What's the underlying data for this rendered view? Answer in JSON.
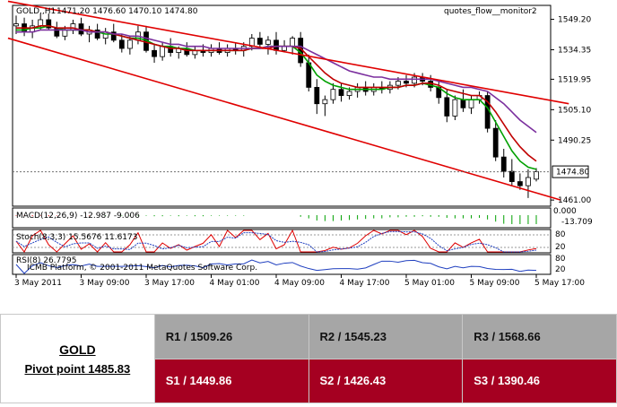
{
  "chart_data": {
    "type": "candlestick",
    "symbol_label": "GOLD,,H1",
    "ohlc_header": "1471.20 1476.60 1470.10 1474.80",
    "indicator_label": "quotes_flow__monitor2",
    "ylim": [
      1458,
      1556
    ],
    "y_ticks": [
      "1549.20",
      "1534.35",
      "1519.95",
      "1505.10",
      "1490.25",
      "1461.00"
    ],
    "y_tick_values": [
      1549.2,
      1534.35,
      1519.95,
      1505.1,
      1490.25,
      1461.0
    ],
    "last_price": "1474.80",
    "last_price_value": 1474.8,
    "x_tick_labels": [
      "3 May 2011",
      "3 May 09:00",
      "3 May 17:00",
      "4 May 01:00",
      "4 May 09:00",
      "4 May 17:00",
      "5 May 01:00",
      "5 May 09:00",
      "5 May 17:00"
    ],
    "x_tick_index": [
      0,
      8,
      16,
      24,
      32,
      40,
      48,
      56,
      64
    ],
    "candles": [
      [
        1546,
        1551,
        1542,
        1547
      ],
      [
        1547,
        1550,
        1541,
        1543
      ],
      [
        1543,
        1549,
        1540,
        1546
      ],
      [
        1546,
        1552,
        1544,
        1549
      ],
      [
        1549,
        1552,
        1544,
        1545
      ],
      [
        1545,
        1548,
        1540,
        1541
      ],
      [
        1541,
        1546,
        1539,
        1544
      ],
      [
        1544,
        1549,
        1542,
        1547
      ],
      [
        1547,
        1550,
        1541,
        1542
      ],
      [
        1542,
        1546,
        1538,
        1544
      ],
      [
        1544,
        1547,
        1539,
        1540
      ],
      [
        1540,
        1545,
        1537,
        1543
      ],
      [
        1543,
        1547,
        1538,
        1539
      ],
      [
        1539,
        1542,
        1533,
        1535
      ],
      [
        1535,
        1541,
        1532,
        1539
      ],
      [
        1539,
        1546,
        1537,
        1543
      ],
      [
        1543,
        1546,
        1533,
        1534
      ],
      [
        1534,
        1537,
        1528,
        1531
      ],
      [
        1531,
        1538,
        1529,
        1536
      ],
      [
        1536,
        1540,
        1531,
        1533
      ],
      [
        1533,
        1536,
        1530,
        1535
      ],
      [
        1535,
        1538,
        1531,
        1532
      ],
      [
        1532,
        1536,
        1530,
        1534
      ],
      [
        1534,
        1537,
        1531,
        1533
      ],
      [
        1533,
        1537,
        1531,
        1535
      ],
      [
        1535,
        1538,
        1532,
        1533
      ],
      [
        1533,
        1537,
        1531,
        1535
      ],
      [
        1535,
        1538,
        1532,
        1534
      ],
      [
        1534,
        1538,
        1531,
        1536
      ],
      [
        1536,
        1542,
        1534,
        1540
      ],
      [
        1540,
        1543,
        1535,
        1537
      ],
      [
        1537,
        1541,
        1532,
        1539
      ],
      [
        1539,
        1543,
        1532,
        1534
      ],
      [
        1534,
        1539,
        1533,
        1536
      ],
      [
        1536,
        1541,
        1532,
        1540
      ],
      [
        1540,
        1543,
        1526,
        1528
      ],
      [
        1528,
        1532,
        1514,
        1516
      ],
      [
        1516,
        1520,
        1503,
        1508
      ],
      [
        1508,
        1512,
        1502,
        1510
      ],
      [
        1510,
        1518,
        1508,
        1515
      ],
      [
        1515,
        1518,
        1509,
        1512
      ],
      [
        1512,
        1516,
        1510,
        1514
      ],
      [
        1514,
        1518,
        1511,
        1516
      ],
      [
        1516,
        1519,
        1512,
        1514
      ],
      [
        1514,
        1518,
        1512,
        1516
      ],
      [
        1516,
        1519,
        1513,
        1515
      ],
      [
        1515,
        1519,
        1513,
        1517
      ],
      [
        1517,
        1521,
        1515,
        1519
      ],
      [
        1519,
        1522,
        1516,
        1518
      ],
      [
        1518,
        1523,
        1516,
        1521
      ],
      [
        1521,
        1523,
        1517,
        1519
      ],
      [
        1519,
        1522,
        1514,
        1516
      ],
      [
        1516,
        1519,
        1508,
        1511
      ],
      [
        1511,
        1515,
        1499,
        1502
      ],
      [
        1502,
        1512,
        1500,
        1510
      ],
      [
        1510,
        1515,
        1504,
        1506
      ],
      [
        1506,
        1512,
        1503,
        1510
      ],
      [
        1510,
        1514,
        1508,
        1512
      ],
      [
        1512,
        1514,
        1494,
        1496
      ],
      [
        1496,
        1500,
        1480,
        1482
      ],
      [
        1482,
        1486,
        1472,
        1475
      ],
      [
        1475,
        1481,
        1468,
        1470
      ],
      [
        1470,
        1474,
        1466,
        1468
      ],
      [
        1468,
        1476,
        1462,
        1472
      ],
      [
        1471.2,
        1476.6,
        1470.1,
        1474.8
      ]
    ],
    "ma_lines": [
      {
        "color": "#00a000",
        "values": [
          1544,
          1544,
          1545,
          1545,
          1546,
          1545,
          1544,
          1544,
          1544,
          1544,
          1543,
          1542,
          1542,
          1541,
          1540,
          1540,
          1539,
          1537,
          1536,
          1536,
          1535,
          1535,
          1534,
          1534,
          1534,
          1534,
          1534,
          1534,
          1534,
          1535,
          1535,
          1536,
          1536,
          1536,
          1536,
          1533,
          1528,
          1522,
          1519,
          1517,
          1516,
          1515,
          1515,
          1515,
          1515,
          1515,
          1516,
          1516,
          1517,
          1517,
          1518,
          1517,
          1516,
          1513,
          1511,
          1510,
          1510,
          1510,
          1506,
          1499,
          1492,
          1485,
          1480,
          1477,
          1476
        ]
      },
      {
        "color": "#c00000",
        "values": [
          1545,
          1545,
          1545,
          1546,
          1546,
          1545,
          1545,
          1545,
          1544,
          1544,
          1543,
          1543,
          1542,
          1541,
          1540,
          1539,
          1538,
          1537,
          1536,
          1535,
          1535,
          1534,
          1534,
          1534,
          1534,
          1534,
          1534,
          1534,
          1534,
          1535,
          1535,
          1535,
          1536,
          1536,
          1536,
          1535,
          1531,
          1527,
          1523,
          1520,
          1518,
          1517,
          1516,
          1516,
          1516,
          1516,
          1516,
          1516,
          1517,
          1517,
          1518,
          1518,
          1517,
          1515,
          1514,
          1513,
          1512,
          1512,
          1509,
          1504,
          1498,
          1492,
          1487,
          1483,
          1480
        ]
      },
      {
        "color": "#7b2f9e",
        "values": [
          1543,
          1543,
          1543,
          1544,
          1544,
          1544,
          1544,
          1544,
          1544,
          1543,
          1543,
          1543,
          1542,
          1542,
          1541,
          1541,
          1540,
          1539,
          1538,
          1537,
          1537,
          1536,
          1536,
          1536,
          1535,
          1535,
          1535,
          1535,
          1535,
          1535,
          1535,
          1536,
          1536,
          1536,
          1536,
          1536,
          1534,
          1532,
          1530,
          1528,
          1526,
          1524,
          1523,
          1522,
          1521,
          1521,
          1520,
          1520,
          1520,
          1520,
          1520,
          1520,
          1519,
          1518,
          1517,
          1516,
          1516,
          1515,
          1514,
          1511,
          1508,
          1504,
          1500,
          1497,
          1494
        ]
      }
    ],
    "trend_lines": [
      {
        "from": [
          -1,
          1558
        ],
        "to": [
          68,
          1508
        ]
      },
      {
        "from": [
          -1,
          1540
        ],
        "to": [
          67,
          1461
        ]
      }
    ],
    "sub_panels": [
      {
        "label": "MACD(12,26,9) -12.987 -9.006",
        "right_labels": [
          "0.000",
          "-13.709"
        ]
      },
      {
        "label": "Stoch(8,3,3) 15.5676 11.6173",
        "right_labels": [
          "80",
          "20"
        ]
      },
      {
        "label": "RSI(8) 26.7795",
        "right_labels": [
          "80",
          "20"
        ],
        "watermark": "ICMB Platform, © 2001-2011 MetaQuotes Software Corp."
      }
    ]
  },
  "pivot": {
    "symbol": "GOLD",
    "pivot_label": "Pivot point 1485.83",
    "resistances": [
      "R1 / 1509.26",
      "R2 / 1545.23",
      "R3 / 1568.66"
    ],
    "supports": [
      "S1 / 1449.86",
      "S2 / 1426.43",
      "S3 / 1390.46"
    ]
  },
  "colors": {
    "bull_candle": "#ffffff",
    "bear_candle": "#000000",
    "trend_line": "#e00000",
    "resistance_bg": "#a6a6a6",
    "support_bg": "#a50021"
  }
}
